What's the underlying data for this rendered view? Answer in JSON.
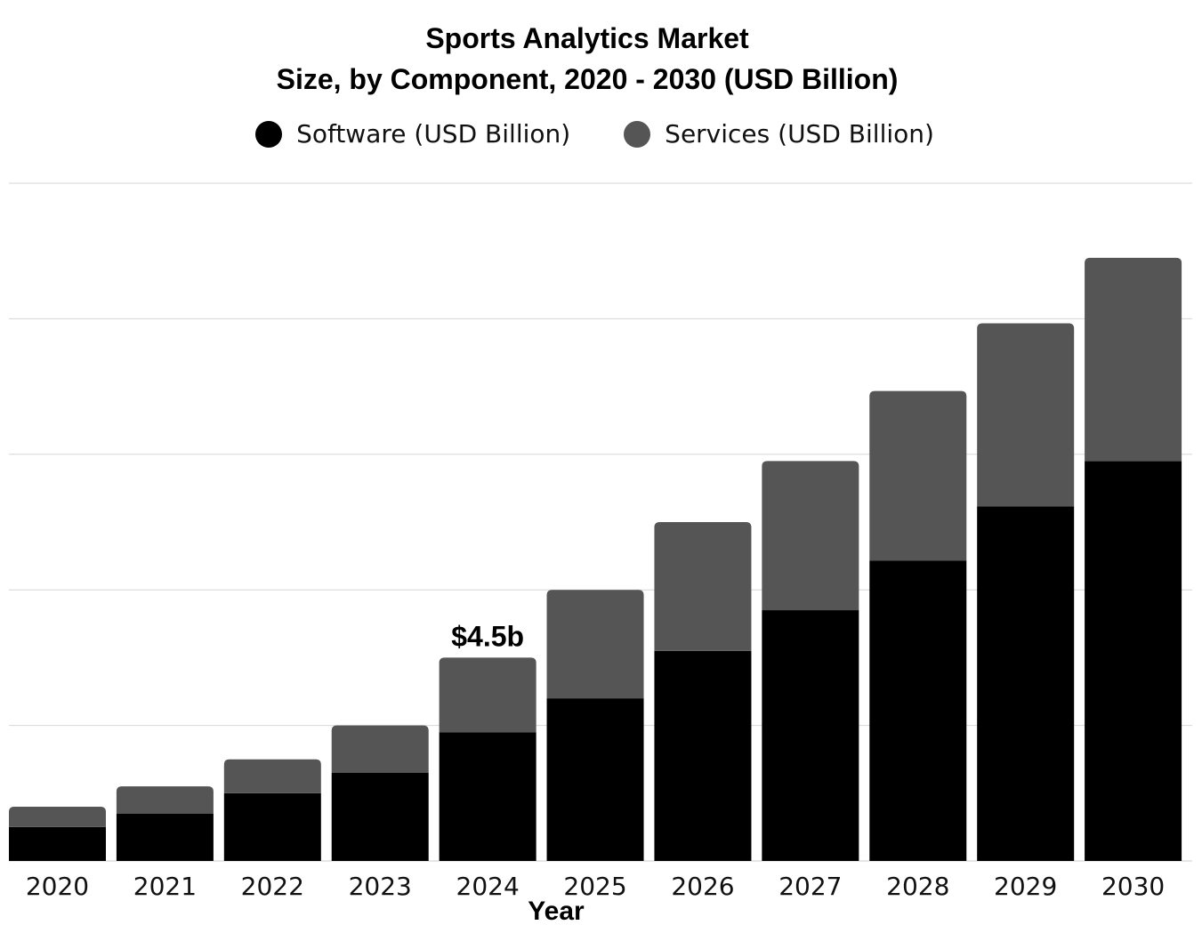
{
  "chart_data": {
    "type": "bar",
    "stacked": true,
    "title_line1": "Sports Analytics Market",
    "title_line2": "Size, by Component, 2020 - 2030 (USD Billion)",
    "xlabel": "Year",
    "ylabel": "",
    "categories": [
      "2020",
      "2021",
      "2022",
      "2023",
      "2024",
      "2025",
      "2026",
      "2027",
      "2028",
      "2029",
      "2030"
    ],
    "series": [
      {
        "name": "Software (USD Billion)",
        "color": "#000000",
        "values": [
          0.75,
          1.05,
          1.5,
          1.95,
          2.85,
          3.6,
          4.65,
          5.55,
          6.65,
          7.85,
          8.85
        ]
      },
      {
        "name": "Services (USD Billion)",
        "color": "#555555",
        "values": [
          0.45,
          0.6,
          0.75,
          1.05,
          1.65,
          2.4,
          2.85,
          3.3,
          3.75,
          4.05,
          4.5
        ]
      }
    ],
    "ylim": [
      0,
      15
    ],
    "grid": true,
    "legend_position": "top",
    "annotations": [
      {
        "category": "2024",
        "text": "$4.5b"
      }
    ]
  }
}
